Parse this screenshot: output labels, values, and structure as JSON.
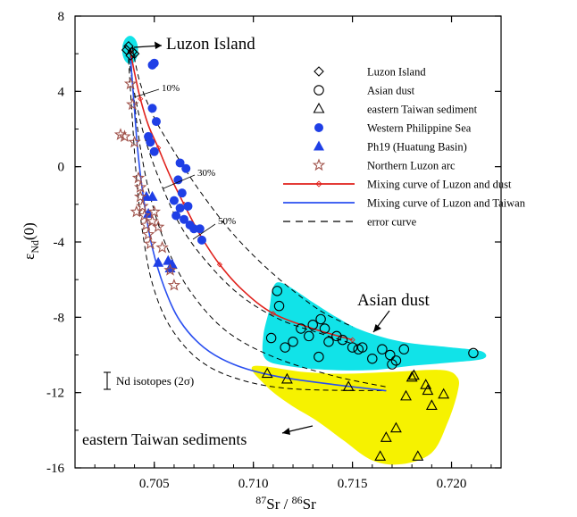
{
  "chart_data": {
    "type": "scatter",
    "xlabel": "87Sr / 86Sr",
    "xlabel_parts": {
      "sup1": "87",
      "base1": "Sr / ",
      "sup2": "86",
      "base2": "Sr"
    },
    "ylabel": "εNd(0)",
    "ylabel_parts": {
      "main": "ε",
      "sub": "Nd",
      "tail": "(0)"
    },
    "xlim": [
      0.701,
      0.7225
    ],
    "ylim": [
      -16,
      8
    ],
    "xticks": [
      "0.705",
      "0.710",
      "0.715",
      "0.720"
    ],
    "xtick_values": [
      0.705,
      0.71,
      0.715,
      0.72
    ],
    "yticks": [
      "8",
      "4",
      "0",
      "-4",
      "-8",
      "-12",
      "-16"
    ],
    "ytick_values": [
      8,
      4,
      0,
      -4,
      -8,
      -12,
      -16
    ],
    "grid": false,
    "legend_position": "top-right",
    "legend": [
      {
        "label": "Luzon Island",
        "symbol": "diamond-open"
      },
      {
        "label": "Asian dust",
        "symbol": "circle-open"
      },
      {
        "label": "eastern Taiwan sediment",
        "symbol": "triangle-open"
      },
      {
        "label": "Western Philippine Sea",
        "symbol": "circle-filled"
      },
      {
        "label": "Ph19 (Huatung Basin)",
        "symbol": "triangle-filled"
      },
      {
        "label": "Northern Luzon arc",
        "symbol": "star-open"
      },
      {
        "label": "Mixing curve of Luzon and dust",
        "symbol": "line-red"
      },
      {
        "label": "Mixing curve of Luzon and Taiwan",
        "symbol": "line-blue"
      },
      {
        "label": "error curve",
        "symbol": "line-dashed"
      }
    ],
    "annotations": {
      "luzon": "Luzon Island",
      "dust": "Asian dust",
      "taiwan": "eastern Taiwan sediments",
      "pct10": "10%",
      "pct30": "30%",
      "pct50": "50%",
      "errorbar": "Nd isotopes (2σ)"
    },
    "colors": {
      "dust_field": "#11e3e8",
      "taiwan_field": "#f6f200",
      "luzon_field": "#11e3e8",
      "wps": "#1f3fe6",
      "star": "#a0524a",
      "red_curve": "#e0211c",
      "blue_curve": "#2a4ff0"
    },
    "series": [
      {
        "name": "Luzon Island",
        "points": [
          [
            0.7037,
            6.4
          ],
          [
            0.7039,
            6.1
          ],
          [
            0.7038,
            5.9
          ],
          [
            0.704,
            6.0
          ],
          [
            0.7036,
            6.2
          ]
        ]
      },
      {
        "name": "Asian dust",
        "points": [
          [
            0.7109,
            -9.1
          ],
          [
            0.7112,
            -6.6
          ],
          [
            0.7113,
            -7.4
          ],
          [
            0.7116,
            -9.6
          ],
          [
            0.712,
            -9.3
          ],
          [
            0.7124,
            -8.6
          ],
          [
            0.7128,
            -9.0
          ],
          [
            0.713,
            -8.4
          ],
          [
            0.7133,
            -10.1
          ],
          [
            0.7134,
            -8.1
          ],
          [
            0.7136,
            -8.6
          ],
          [
            0.7138,
            -9.3
          ],
          [
            0.7142,
            -9.0
          ],
          [
            0.7145,
            -9.2
          ],
          [
            0.715,
            -9.6
          ],
          [
            0.7153,
            -9.7
          ],
          [
            0.7155,
            -9.6
          ],
          [
            0.716,
            -10.2
          ],
          [
            0.7165,
            -9.7
          ],
          [
            0.7169,
            -10.0
          ],
          [
            0.717,
            -10.5
          ],
          [
            0.7172,
            -10.3
          ],
          [
            0.7176,
            -9.7
          ],
          [
            0.7211,
            -9.9
          ]
        ]
      },
      {
        "name": "eastern Taiwan sediment",
        "points": [
          [
            0.7107,
            -11.0
          ],
          [
            0.7117,
            -11.3
          ],
          [
            0.7148,
            -11.7
          ],
          [
            0.7164,
            -15.4
          ],
          [
            0.7167,
            -14.4
          ],
          [
            0.7172,
            -13.9
          ],
          [
            0.7177,
            -12.2
          ],
          [
            0.718,
            -11.2
          ],
          [
            0.7181,
            -11.1
          ],
          [
            0.7183,
            -15.4
          ],
          [
            0.7187,
            -11.6
          ],
          [
            0.7188,
            -11.9
          ],
          [
            0.719,
            -12.7
          ],
          [
            0.7196,
            -12.1
          ]
        ]
      },
      {
        "name": "Western Philippine Sea",
        "points": [
          [
            0.7049,
            5.4
          ],
          [
            0.705,
            5.5
          ],
          [
            0.7049,
            3.1
          ],
          [
            0.7051,
            2.4
          ],
          [
            0.7047,
            1.6
          ],
          [
            0.7048,
            1.3
          ],
          [
            0.705,
            0.8
          ],
          [
            0.7063,
            0.2
          ],
          [
            0.7066,
            -0.1
          ],
          [
            0.7062,
            -0.7
          ],
          [
            0.7064,
            -1.4
          ],
          [
            0.706,
            -1.8
          ],
          [
            0.7063,
            -2.2
          ],
          [
            0.7061,
            -2.6
          ],
          [
            0.7065,
            -2.8
          ],
          [
            0.7067,
            -2.1
          ],
          [
            0.7068,
            -3.1
          ],
          [
            0.707,
            -3.3
          ],
          [
            0.7073,
            -3.3
          ],
          [
            0.7074,
            -3.9
          ]
        ]
      },
      {
        "name": "Ph19 (Huatung Basin)",
        "points": [
          [
            0.7046,
            -1.6
          ],
          [
            0.7049,
            -1.6
          ],
          [
            0.7047,
            -2.5
          ],
          [
            0.7052,
            -5.1
          ],
          [
            0.7057,
            -5.0
          ],
          [
            0.7058,
            -5.4
          ],
          [
            0.7059,
            -5.2
          ]
        ]
      },
      {
        "name": "Northern Luzon arc",
        "points": [
          [
            0.7033,
            1.7
          ],
          [
            0.7035,
            1.6
          ],
          [
            0.7038,
            4.4
          ],
          [
            0.7039,
            3.3
          ],
          [
            0.704,
            1.3
          ],
          [
            0.7042,
            -0.6
          ],
          [
            0.7043,
            -1.1
          ],
          [
            0.7043,
            -1.6
          ],
          [
            0.7044,
            -2.1
          ],
          [
            0.7045,
            -2.6
          ],
          [
            0.7046,
            -3.1
          ],
          [
            0.7047,
            -3.6
          ],
          [
            0.7048,
            -4.1
          ],
          [
            0.7049,
            -2.9
          ],
          [
            0.705,
            -2.4
          ],
          [
            0.7041,
            -2.4
          ],
          [
            0.7052,
            -3.2
          ],
          [
            0.7054,
            -4.3
          ],
          [
            0.7058,
            -5.5
          ],
          [
            0.706,
            -6.3
          ]
        ]
      },
      {
        "name": "Mixing curve of Luzon and dust",
        "line": [
          [
            0.7038,
            6.1
          ],
          [
            0.704,
            5.0
          ],
          [
            0.7043,
            3.6
          ],
          [
            0.7047,
            2.2
          ],
          [
            0.7052,
            1.0
          ],
          [
            0.7058,
            -0.5
          ],
          [
            0.7065,
            -2.0
          ],
          [
            0.7073,
            -3.6
          ],
          [
            0.7083,
            -5.2
          ],
          [
            0.7095,
            -6.6
          ],
          [
            0.711,
            -7.8
          ],
          [
            0.713,
            -8.6
          ],
          [
            0.715,
            -9.2
          ]
        ]
      },
      {
        "name": "Mixing curve of Luzon and Taiwan",
        "line": [
          [
            0.7038,
            5.8
          ],
          [
            0.704,
            3.0
          ],
          [
            0.7042,
            0.5
          ],
          [
            0.7045,
            -2.0
          ],
          [
            0.7049,
            -4.3
          ],
          [
            0.7055,
            -6.4
          ],
          [
            0.7063,
            -8.2
          ],
          [
            0.7075,
            -9.6
          ],
          [
            0.709,
            -10.5
          ],
          [
            0.711,
            -11.1
          ],
          [
            0.7135,
            -11.5
          ],
          [
            0.7167,
            -11.9
          ]
        ]
      }
    ],
    "error_curves": [
      [
        [
          0.7039,
          6.3
        ],
        [
          0.7043,
          4.4
        ],
        [
          0.705,
          2.6
        ],
        [
          0.706,
          0.8
        ],
        [
          0.7073,
          -1.3
        ],
        [
          0.709,
          -3.6
        ],
        [
          0.711,
          -5.7
        ],
        [
          0.7133,
          -7.6
        ],
        [
          0.715,
          -8.5
        ]
      ],
      [
        [
          0.7037,
          5.8
        ],
        [
          0.704,
          3.9
        ],
        [
          0.7045,
          1.6
        ],
        [
          0.7053,
          -0.8
        ],
        [
          0.7063,
          -3.1
        ],
        [
          0.7076,
          -5.0
        ],
        [
          0.7093,
          -6.8
        ],
        [
          0.7113,
          -8.1
        ],
        [
          0.7135,
          -8.9
        ],
        [
          0.715,
          -9.4
        ]
      ],
      [
        [
          0.7038,
          5.9
        ],
        [
          0.704,
          3.4
        ],
        [
          0.7043,
          1.0
        ],
        [
          0.7048,
          -1.6
        ],
        [
          0.7056,
          -4.2
        ],
        [
          0.7068,
          -6.6
        ],
        [
          0.7086,
          -8.7
        ],
        [
          0.711,
          -10.1
        ],
        [
          0.714,
          -11.1
        ],
        [
          0.7167,
          -11.7
        ]
      ],
      [
        [
          0.7037,
          5.7
        ],
        [
          0.7039,
          2.4
        ],
        [
          0.7041,
          -0.6
        ],
        [
          0.7044,
          -3.4
        ],
        [
          0.7049,
          -6.2
        ],
        [
          0.7058,
          -8.5
        ],
        [
          0.7073,
          -10.3
        ],
        [
          0.7093,
          -11.3
        ],
        [
          0.712,
          -11.8
        ],
        [
          0.7167,
          -11.9
        ]
      ]
    ],
    "shaded_regions": [
      {
        "name": "dust",
        "polygon": [
          [
            0.7108,
            -7.6
          ],
          [
            0.711,
            -6.4
          ],
          [
            0.7115,
            -6.2
          ],
          [
            0.713,
            -7.2
          ],
          [
            0.7142,
            -8.0
          ],
          [
            0.7155,
            -8.7
          ],
          [
            0.7175,
            -9.3
          ],
          [
            0.72,
            -9.6
          ],
          [
            0.7215,
            -9.8
          ],
          [
            0.7216,
            -10.2
          ],
          [
            0.72,
            -10.4
          ],
          [
            0.7178,
            -10.6
          ],
          [
            0.716,
            -10.8
          ],
          [
            0.714,
            -10.8
          ],
          [
            0.7118,
            -10.6
          ],
          [
            0.7106,
            -10.2
          ],
          [
            0.7105,
            -9.0
          ]
        ]
      },
      {
        "name": "taiwan",
        "polygon": [
          [
            0.71,
            -10.6
          ],
          [
            0.7125,
            -10.9
          ],
          [
            0.7145,
            -11.0
          ],
          [
            0.717,
            -10.9
          ],
          [
            0.7195,
            -10.8
          ],
          [
            0.7203,
            -11.2
          ],
          [
            0.7203,
            -12.0
          ],
          [
            0.7198,
            -13.6
          ],
          [
            0.719,
            -15.2
          ],
          [
            0.7175,
            -15.8
          ],
          [
            0.716,
            -15.6
          ],
          [
            0.7145,
            -14.5
          ],
          [
            0.7132,
            -13.5
          ],
          [
            0.7118,
            -12.6
          ],
          [
            0.7106,
            -11.6
          ]
        ]
      },
      {
        "name": "luzon",
        "ellipse": {
          "cx": 0.70378,
          "cy": 6.2,
          "rx": 0.0004,
          "ry": 0.75
        }
      }
    ]
  }
}
